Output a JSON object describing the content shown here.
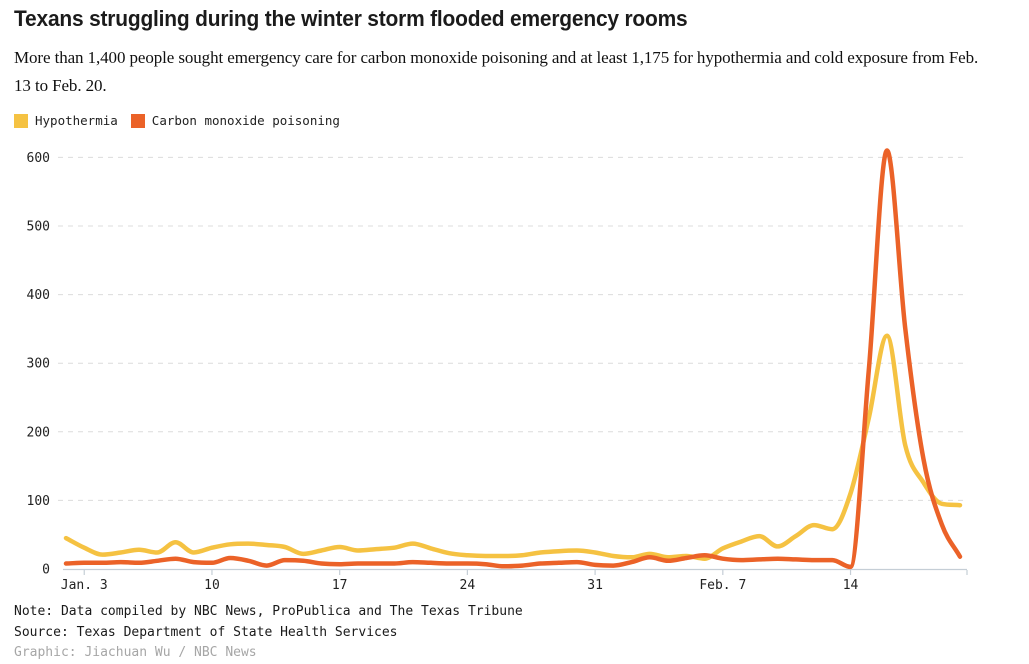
{
  "header": {
    "title": "Texans struggling during the winter storm flooded emergency rooms",
    "subtitle": "More than 1,400 people sought emergency care for carbon monoxide poisoning and at least 1,175 for hypothermia and cold exposure from Feb. 13 to Feb. 20."
  },
  "legend": [
    {
      "label": "Hypothermia",
      "color": "#F5C242"
    },
    {
      "label": "Carbon monoxide poisoning",
      "color": "#EB6228"
    }
  ],
  "footer": {
    "note": "Note: Data compiled by NBC News, ProPublica and The Texas Tribune",
    "source": "Source: Texas Department of State Health Services",
    "credit": "Graphic: Jiachuan Wu / NBC News"
  },
  "chart_data": {
    "type": "line",
    "title": "Texans struggling during the winter storm flooded emergency rooms",
    "x": [
      "Jan. 2",
      "Jan. 3",
      "Jan. 4",
      "Jan. 5",
      "Jan. 6",
      "Jan. 7",
      "Jan. 8",
      "Jan. 9",
      "Jan. 10",
      "Jan. 11",
      "Jan. 12",
      "Jan. 13",
      "Jan. 14",
      "Jan. 15",
      "Jan. 16",
      "Jan. 17",
      "Jan. 18",
      "Jan. 19",
      "Jan. 20",
      "Jan. 21",
      "Jan. 22",
      "Jan. 23",
      "Jan. 24",
      "Jan. 25",
      "Jan. 26",
      "Jan. 27",
      "Jan. 28",
      "Jan. 29",
      "Jan. 30",
      "Jan. 31",
      "Feb. 1",
      "Feb. 2",
      "Feb. 3",
      "Feb. 4",
      "Feb. 5",
      "Feb. 6",
      "Feb. 7",
      "Feb. 8",
      "Feb. 9",
      "Feb. 10",
      "Feb. 11",
      "Feb. 12",
      "Feb. 13",
      "Feb. 14",
      "Feb. 15",
      "Feb. 16",
      "Feb. 17",
      "Feb. 18",
      "Feb. 19",
      "Feb. 20"
    ],
    "series": [
      {
        "name": "Hypothermia",
        "color": "#F5C242",
        "values": [
          45,
          31,
          21,
          24,
          28,
          24,
          39,
          24,
          31,
          36,
          37,
          35,
          32,
          22,
          27,
          32,
          27,
          29,
          31,
          37,
          30,
          23,
          20,
          19,
          19,
          20,
          24,
          26,
          27,
          24,
          19,
          17,
          22,
          17,
          19,
          15,
          30,
          40,
          48,
          33,
          48,
          64,
          58,
          110,
          220,
          340,
          180,
          126,
          95,
          93
        ]
      },
      {
        "name": "Carbon monoxide poisoning",
        "color": "#EB6228",
        "values": [
          8,
          9,
          9,
          10,
          9,
          12,
          15,
          10,
          9,
          16,
          12,
          5,
          13,
          12,
          8,
          7,
          8,
          8,
          8,
          10,
          9,
          8,
          8,
          7,
          4,
          5,
          8,
          9,
          10,
          6,
          5,
          10,
          17,
          12,
          16,
          20,
          15,
          13,
          14,
          15,
          14,
          13,
          13,
          3,
          290,
          610,
          350,
          160,
          65,
          18
        ]
      }
    ],
    "yticks": [
      0,
      100,
      200,
      300,
      400,
      500,
      600
    ],
    "xtick_labels": [
      "Jan. 3",
      "10",
      "17",
      "24",
      "31",
      "Feb. 7",
      "14"
    ],
    "xtick_indices": [
      1,
      8,
      15,
      22,
      29,
      36,
      43
    ],
    "ylim": [
      0,
      620
    ],
    "ylabel": "",
    "xlabel": "",
    "grid": "horizontal-dashed",
    "legend_position": "top-left"
  },
  "colors": {
    "grid": "#dcdcdc",
    "axis": "#c5ced6",
    "tick_text": "#222222"
  }
}
